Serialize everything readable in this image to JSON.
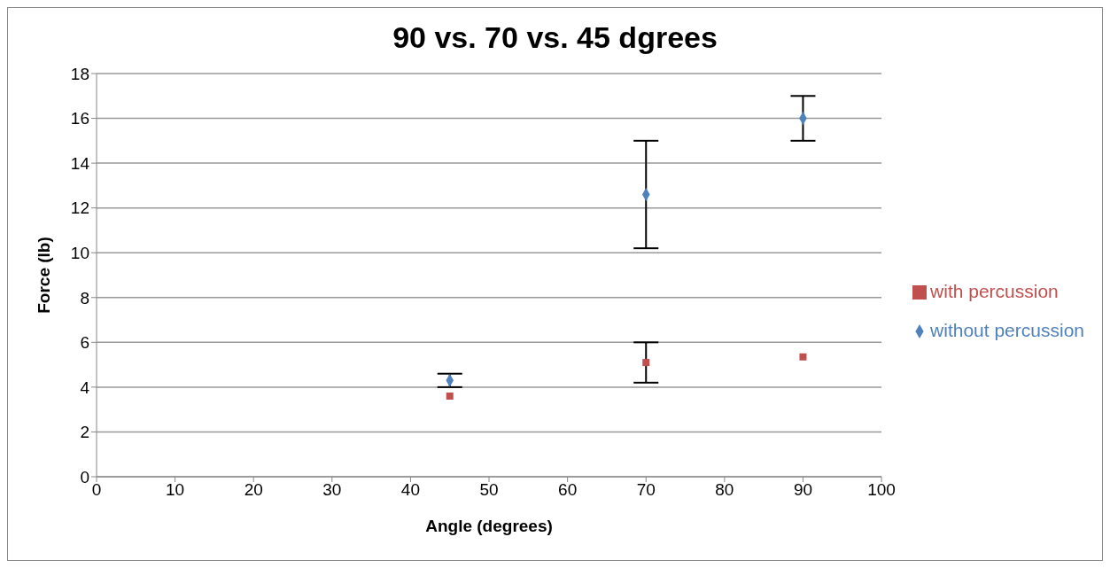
{
  "chart_data": {
    "type": "scatter",
    "title": "90 vs. 70 vs. 45 dgrees",
    "xlabel": "Angle (degrees)",
    "ylabel": "Force (lb)",
    "x": [
      45,
      70,
      90
    ],
    "series": [
      {
        "name": "without percussion",
        "color": "#4f81bd",
        "marker": "diamond",
        "values": [
          4.3,
          12.6,
          16
        ],
        "errors": [
          0.3,
          2.4,
          1
        ]
      },
      {
        "name": "with percussion",
        "color": "#c0504d",
        "marker": "square",
        "values": [
          3.6,
          5.1,
          5.35
        ],
        "errors": [
          null,
          0.9,
          null
        ]
      }
    ],
    "xlim": [
      0,
      100
    ],
    "xticks": [
      0,
      10,
      20,
      30,
      40,
      50,
      60,
      70,
      80,
      90,
      100
    ],
    "ylim": [
      0,
      18
    ],
    "yticks": [
      0,
      2,
      4,
      6,
      8,
      10,
      12,
      14,
      16,
      18
    ],
    "grid": "y",
    "legend": "right"
  }
}
